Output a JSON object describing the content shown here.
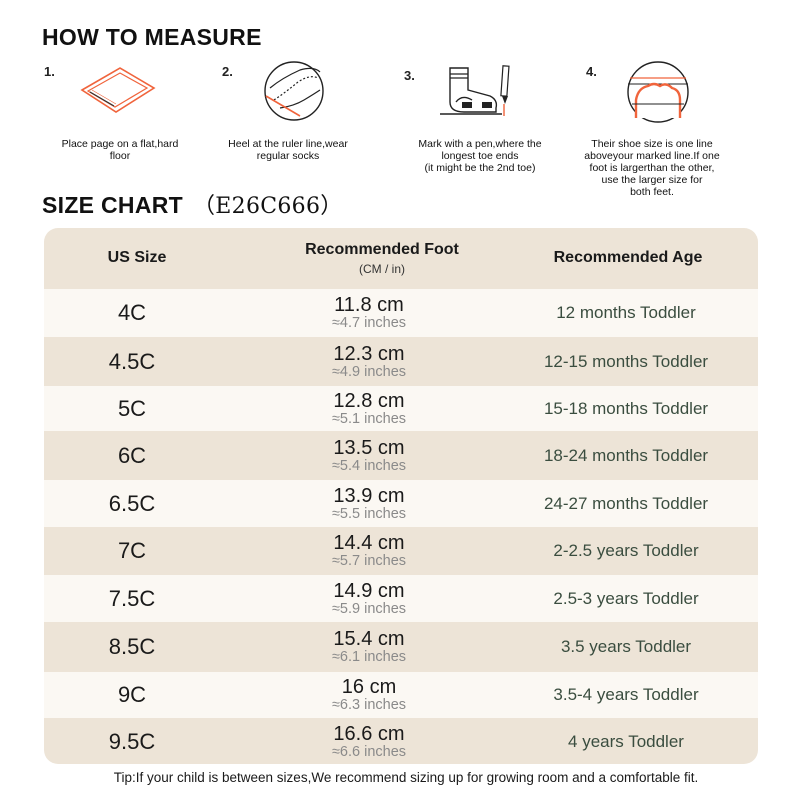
{
  "measure": {
    "title": "HOW TO MEASURE",
    "steps": [
      {
        "num": "1.",
        "icon": "paper-on-floor-icon",
        "caption": "Place page on a flat,hard\nfloor"
      },
      {
        "num": "2.",
        "icon": "heel-at-ruler-icon",
        "caption": "Heel at the ruler line,wear\nregular socks"
      },
      {
        "num": "3.",
        "icon": "foot-and-pen-icon",
        "caption": "Mark with a pen,where the\nlongest toe ends\n(it might be the 2nd toe)"
      },
      {
        "num": "4.",
        "icon": "toe-line-icon",
        "caption": "Their shoe size is one line\naboveyour marked line.If one\nfoot is largerthan the other,\nuse the larger size for\nboth feet."
      }
    ]
  },
  "size_chart": {
    "title": "SIZE CHART",
    "code": "（E26C666）",
    "headers": {
      "size": "US Size",
      "foot": "Recommended Foot",
      "foot_sub": "(CM / in)",
      "age": "Recommended Age"
    },
    "rows": [
      {
        "size": "4C",
        "cm": "11.8 cm",
        "in": "≈4.7 inches",
        "age": "12 months Toddler"
      },
      {
        "size": "4.5C",
        "cm": "12.3 cm",
        "in": "≈4.9 inches",
        "age": "12-15 months Toddler"
      },
      {
        "size": "5C",
        "cm": "12.8 cm",
        "in": "≈5.1 inches",
        "age": "15-18 months Toddler"
      },
      {
        "size": "6C",
        "cm": "13.5 cm",
        "in": "≈5.4 inches",
        "age": "18-24 months Toddler"
      },
      {
        "size": "6.5C",
        "cm": "13.9 cm",
        "in": "≈5.5 inches",
        "age": "24-27 months Toddler"
      },
      {
        "size": "7C",
        "cm": "14.4 cm",
        "in": "≈5.7 inches",
        "age": "2-2.5 years Toddler"
      },
      {
        "size": "7.5C",
        "cm": "14.9 cm",
        "in": "≈5.9 inches",
        "age": "2.5-3 years Toddler"
      },
      {
        "size": "8.5C",
        "cm": "15.4 cm",
        "in": "≈6.1 inches",
        "age": "3.5 years Toddler"
      },
      {
        "size": "9C",
        "cm": "16 cm",
        "in": "≈6.3 inches",
        "age": "3.5-4 years Toddler"
      },
      {
        "size": "9.5C",
        "cm": "16.6 cm",
        "in": "≈6.6 inches",
        "age": "4 years Toddler"
      }
    ]
  },
  "tip": "Tip:If your child is between sizes,We recommend sizing up for growing room and a comfortable fit.",
  "colors": {
    "accent": "#f0643c",
    "table_bg": "#ede4d7",
    "row_light": "#fbf8f3",
    "age_text": "#3a4d3f"
  }
}
